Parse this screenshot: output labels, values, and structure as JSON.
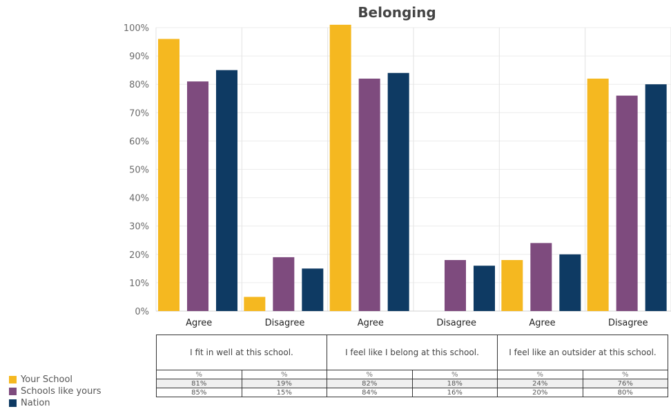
{
  "chart_data": {
    "type": "bar",
    "title": "Belonging",
    "categories": [
      "Agree",
      "Disagree",
      "Agree",
      "Disagree",
      "Agree",
      "Disagree"
    ],
    "series": [
      {
        "name": "Your School",
        "values": [
          96,
          5,
          101,
          0,
          18,
          82
        ]
      },
      {
        "name": "Schools like yours",
        "values": [
          81,
          19,
          82,
          18,
          24,
          76
        ]
      },
      {
        "name": "Nation",
        "values": [
          85,
          15,
          84,
          16,
          20,
          80
        ]
      }
    ],
    "ylim": [
      0,
      100
    ],
    "yticks": [
      "100%",
      "90%",
      "80%",
      "70%",
      "60%",
      "50%",
      "40%",
      "30%",
      "20%",
      "10%",
      "0%"
    ],
    "grid": true,
    "legend_position": "bottom-left"
  },
  "colors": {
    "your_school": "#F5B820",
    "schools_like_yours": "#7E4B7E",
    "nation": "#0E3A63"
  },
  "table": {
    "questions": [
      "I fit in well at this school.",
      "I feel like I belong at this school.",
      "I feel like an outsider at this school."
    ],
    "header_cells": [
      "%",
      "%",
      "%",
      "%",
      "%",
      "%"
    ],
    "row_schools_like_yours": [
      "81%",
      "19%",
      "82%",
      "18%",
      "24%",
      "76%"
    ],
    "row_nation": [
      "85%",
      "15%",
      "84%",
      "16%",
      "20%",
      "80%"
    ]
  },
  "legend": {
    "items": [
      "Your School",
      "Schools like yours",
      "Nation"
    ]
  }
}
